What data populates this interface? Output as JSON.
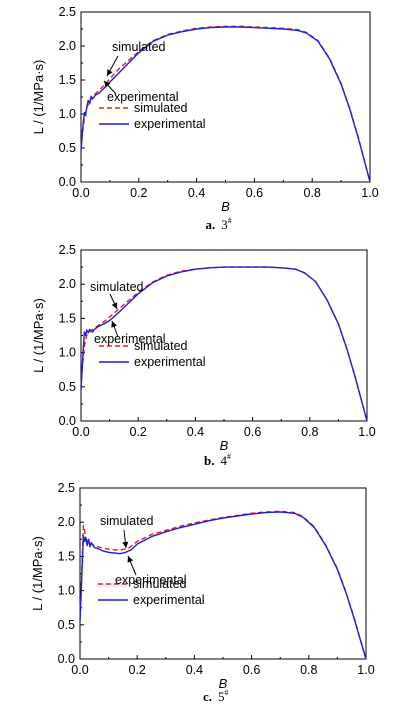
{
  "colors": {
    "simulated": "#e0201b",
    "experimental": "#1f1fd6",
    "axis": "#000000"
  },
  "chart_data": [
    {
      "type": "line",
      "panel": "a",
      "caption": {
        "letter": "a.",
        "label": "3",
        "superscript": "#"
      },
      "xlabel": "B",
      "ylabel": "L / (1/MPa·s)",
      "xlim": [
        0,
        1.0
      ],
      "ylim": [
        0,
        2.5
      ],
      "x_ticks": [
        "0.0",
        "0.2",
        "0.4",
        "0.6",
        "0.8",
        "1.0"
      ],
      "y_ticks": [
        "0.0",
        "0.5",
        "1.0",
        "1.5",
        "2.0",
        "2.5"
      ],
      "grid": false,
      "legend_position": "bottom-left",
      "annotations": [
        "simulated",
        "experimental"
      ],
      "series": [
        {
          "name": "simulated",
          "style": "dashed",
          "x": [
            0.0,
            0.005,
            0.012,
            0.02,
            0.035,
            0.05,
            0.08,
            0.1,
            0.13,
            0.16,
            0.2,
            0.25,
            0.3,
            0.35,
            0.4,
            0.45,
            0.5,
            0.55,
            0.6,
            0.65,
            0.7,
            0.75,
            0.78,
            0.82,
            0.86,
            0.9,
            0.93,
            0.96,
            0.98,
            1.0
          ],
          "y": [
            0.5,
            0.72,
            0.95,
            1.1,
            1.22,
            1.3,
            1.42,
            1.52,
            1.66,
            1.77,
            1.92,
            2.08,
            2.17,
            2.22,
            2.26,
            2.28,
            2.29,
            2.29,
            2.28,
            2.27,
            2.26,
            2.24,
            2.2,
            2.08,
            1.82,
            1.45,
            1.08,
            0.65,
            0.33,
            0.0
          ]
        },
        {
          "name": "experimental",
          "style": "solid",
          "x": [
            0.0,
            0.004,
            0.008,
            0.012,
            0.016,
            0.02,
            0.025,
            0.03,
            0.035,
            0.04,
            0.05,
            0.06,
            0.08,
            0.1,
            0.13,
            0.16,
            0.2,
            0.25,
            0.3,
            0.35,
            0.4,
            0.45,
            0.5,
            0.55,
            0.6,
            0.65,
            0.7,
            0.75,
            0.78,
            0.82,
            0.86,
            0.9,
            0.93,
            0.96,
            0.98,
            1.0
          ],
          "y": [
            0.45,
            0.7,
            0.88,
            1.02,
            0.98,
            1.1,
            1.2,
            1.15,
            1.26,
            1.22,
            1.28,
            1.3,
            1.38,
            1.47,
            1.6,
            1.73,
            1.9,
            2.07,
            2.16,
            2.21,
            2.25,
            2.27,
            2.28,
            2.28,
            2.27,
            2.26,
            2.25,
            2.23,
            2.19,
            2.07,
            1.81,
            1.44,
            1.07,
            0.64,
            0.32,
            0.0
          ]
        }
      ]
    },
    {
      "type": "line",
      "panel": "b",
      "caption": {
        "letter": "b.",
        "label": "4",
        "superscript": "#"
      },
      "xlabel": "B",
      "ylabel": "L / (1/MPa·s)",
      "xlim": [
        0,
        1.0
      ],
      "ylim": [
        0,
        2.5
      ],
      "x_ticks": [
        "0.0",
        "0.2",
        "0.4",
        "0.6",
        "0.8",
        "1.0"
      ],
      "y_ticks": [
        "0.0",
        "0.5",
        "1.0",
        "1.5",
        "2.0",
        "2.5"
      ],
      "grid": false,
      "legend_position": "bottom-left",
      "annotations": [
        "simulated",
        "experimental"
      ],
      "series": [
        {
          "name": "simulated",
          "style": "dashed",
          "x": [
            0.0,
            0.005,
            0.012,
            0.02,
            0.035,
            0.05,
            0.08,
            0.1,
            0.13,
            0.16,
            0.2,
            0.25,
            0.3,
            0.35,
            0.4,
            0.45,
            0.5,
            0.55,
            0.6,
            0.65,
            0.7,
            0.75,
            0.78,
            0.82,
            0.86,
            0.9,
            0.93,
            0.96,
            0.98,
            1.0
          ],
          "y": [
            0.5,
            0.8,
            1.1,
            1.25,
            1.32,
            1.37,
            1.45,
            1.52,
            1.63,
            1.74,
            1.88,
            2.03,
            2.13,
            2.19,
            2.22,
            2.24,
            2.25,
            2.25,
            2.25,
            2.25,
            2.24,
            2.22,
            2.17,
            2.04,
            1.77,
            1.42,
            1.05,
            0.62,
            0.31,
            0.0
          ]
        },
        {
          "name": "experimental",
          "style": "solid",
          "x": [
            0.0,
            0.004,
            0.008,
            0.012,
            0.016,
            0.02,
            0.025,
            0.03,
            0.04,
            0.05,
            0.06,
            0.08,
            0.1,
            0.13,
            0.16,
            0.2,
            0.25,
            0.3,
            0.35,
            0.4,
            0.45,
            0.5,
            0.55,
            0.6,
            0.65,
            0.7,
            0.75,
            0.78,
            0.82,
            0.86,
            0.9,
            0.93,
            0.96,
            0.98,
            1.0
          ],
          "y": [
            0.45,
            0.75,
            1.05,
            1.3,
            1.25,
            1.33,
            1.29,
            1.34,
            1.3,
            1.35,
            1.38,
            1.42,
            1.47,
            1.58,
            1.7,
            1.86,
            2.02,
            2.12,
            2.18,
            2.22,
            2.24,
            2.25,
            2.25,
            2.25,
            2.25,
            2.24,
            2.22,
            2.17,
            2.04,
            1.77,
            1.42,
            1.05,
            0.62,
            0.31,
            0.0
          ]
        }
      ]
    },
    {
      "type": "line",
      "panel": "c",
      "caption": {
        "letter": "c.",
        "label": "5",
        "superscript": "#"
      },
      "xlabel": "B",
      "ylabel": "L / (1/MPa·s)",
      "xlim": [
        0,
        1.0
      ],
      "ylim": [
        0,
        2.5
      ],
      "x_ticks": [
        "0.0",
        "0.2",
        "0.4",
        "0.6",
        "0.8",
        "1.0"
      ],
      "y_ticks": [
        "0.0",
        "0.5",
        "1.0",
        "1.5",
        "2.0",
        "2.5"
      ],
      "grid": false,
      "legend_position": "bottom-left",
      "annotations": [
        "simulated",
        "experimental"
      ],
      "series": [
        {
          "name": "simulated",
          "style": "dashed",
          "x": [
            0.0,
            0.004,
            0.008,
            0.012,
            0.016,
            0.02,
            0.03,
            0.05,
            0.08,
            0.11,
            0.14,
            0.17,
            0.2,
            0.25,
            0.3,
            0.35,
            0.4,
            0.45,
            0.5,
            0.55,
            0.6,
            0.65,
            0.7,
            0.75,
            0.78,
            0.82,
            0.86,
            0.9,
            0.93,
            0.96,
            0.98,
            1.0
          ],
          "y": [
            0.6,
            1.0,
            1.5,
            1.95,
            1.88,
            1.76,
            1.7,
            1.66,
            1.62,
            1.6,
            1.59,
            1.62,
            1.72,
            1.82,
            1.88,
            1.94,
            1.99,
            2.03,
            2.07,
            2.1,
            2.13,
            2.15,
            2.16,
            2.14,
            2.08,
            1.93,
            1.66,
            1.32,
            0.98,
            0.58,
            0.29,
            0.0
          ]
        },
        {
          "name": "experimental",
          "style": "solid",
          "x": [
            0.0,
            0.004,
            0.008,
            0.012,
            0.016,
            0.02,
            0.025,
            0.03,
            0.035,
            0.04,
            0.05,
            0.06,
            0.08,
            0.1,
            0.12,
            0.14,
            0.16,
            0.18,
            0.2,
            0.25,
            0.3,
            0.35,
            0.4,
            0.45,
            0.5,
            0.55,
            0.6,
            0.65,
            0.7,
            0.75,
            0.78,
            0.82,
            0.86,
            0.9,
            0.93,
            0.96,
            0.98,
            1.0
          ],
          "y": [
            0.55,
            0.95,
            1.4,
            1.8,
            1.72,
            1.78,
            1.66,
            1.75,
            1.64,
            1.7,
            1.63,
            1.62,
            1.58,
            1.56,
            1.55,
            1.54,
            1.56,
            1.6,
            1.68,
            1.79,
            1.86,
            1.92,
            1.97,
            2.02,
            2.06,
            2.09,
            2.12,
            2.14,
            2.15,
            2.13,
            2.07,
            1.92,
            1.65,
            1.31,
            0.97,
            0.57,
            0.28,
            0.0
          ]
        }
      ]
    }
  ]
}
